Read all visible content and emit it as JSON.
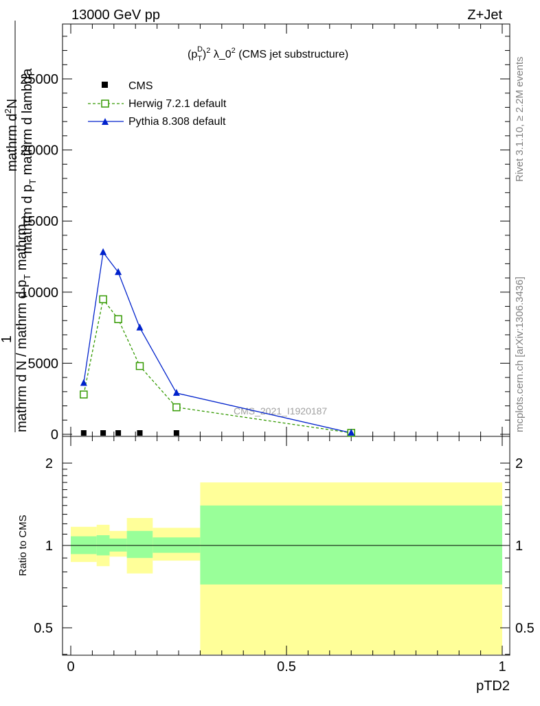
{
  "header": {
    "energy_label": "13000 GeV pp",
    "process_label": "Z+Jet",
    "plot_title_prefix": "(p",
    "plot_title_sub": "T",
    "plot_title_sup": "D",
    "plot_title_rest": ")",
    "plot_title_sup2": "2",
    "plot_title_mid": " λ_0",
    "plot_title_sup3": "2",
    "plot_title_tail": " (CMS jet substructure)"
  },
  "side_labels": {
    "rivet": "Rivet 3.1.10, ≥ 2.2M events",
    "mcplots": "mcplots.cern.ch [arXiv:1306.3436]"
  },
  "watermark": "CMS_2021_I1920187",
  "main_ylabel": {
    "num_1": "1",
    "line_a": "mathrm d N / mathrm d p",
    "line_a_sub": "T",
    "line_a_tail": " mathrm",
    "line_b": "mathrm d",
    "line_b_sup": "2",
    "line_b_tail": "N",
    "line_c": "mathrm d p",
    "line_c_sub": "T",
    "line_c_tail": " mathrm d lambda"
  },
  "ratio_ylabel": "Ratio to CMS",
  "xlabel": "pTD2",
  "colors": {
    "herwig": "#339900",
    "pythia": "#0022cc",
    "cms": "#000000",
    "band_yellow": "#ffff99",
    "band_green": "#99ff99"
  },
  "chart_data": [
    {
      "type": "line",
      "name": "main",
      "xlim": [
        0,
        1
      ],
      "ylim": [
        0,
        29000
      ],
      "yticks": [
        0,
        5000,
        10000,
        15000,
        20000,
        25000
      ],
      "ytick_labels": [
        "0",
        "5000",
        "10000",
        "15000",
        "20000",
        "25000"
      ],
      "legend_position": "top-left",
      "series": [
        {
          "name": "CMS",
          "marker": "square-filled",
          "x": [
            0.03,
            0.075,
            0.11,
            0.16,
            0.245
          ],
          "y": [
            0,
            0,
            0,
            0,
            0
          ]
        },
        {
          "name": "Herwig 7.2.1 default",
          "marker": "square-open",
          "style": "dashed",
          "x": [
            0.03,
            0.075,
            0.11,
            0.16,
            0.245,
            0.65
          ],
          "y": [
            2800,
            9500,
            8100,
            4800,
            1900,
            100
          ]
        },
        {
          "name": "Pythia 8.308 default",
          "marker": "triangle-filled",
          "style": "solid",
          "x": [
            0.03,
            0.075,
            0.11,
            0.16,
            0.245,
            0.65
          ],
          "y": [
            3600,
            12800,
            11400,
            7500,
            2900,
            100
          ]
        }
      ]
    },
    {
      "type": "area",
      "name": "ratio",
      "xlim": [
        0,
        1
      ],
      "ylim": [
        0.35,
        2.3
      ],
      "log_scale": true,
      "yticks": [
        0.5,
        1,
        2
      ],
      "ytick_labels": [
        "0.5",
        "1",
        "2"
      ],
      "xticks": [
        0,
        0.5,
        1
      ],
      "xtick_labels": [
        "0",
        "0.5",
        "1"
      ],
      "reference_line": 1,
      "bands": [
        {
          "x0": 0.0,
          "x1": 0.06,
          "yellow": [
            0.87,
            1.17
          ],
          "green": [
            0.93,
            1.08
          ]
        },
        {
          "x0": 0.06,
          "x1": 0.09,
          "yellow": [
            0.84,
            1.19
          ],
          "green": [
            0.92,
            1.09
          ]
        },
        {
          "x0": 0.09,
          "x1": 0.13,
          "yellow": [
            0.91,
            1.13
          ],
          "green": [
            0.95,
            1.06
          ]
        },
        {
          "x0": 0.13,
          "x1": 0.19,
          "yellow": [
            0.79,
            1.26
          ],
          "green": [
            0.9,
            1.13
          ]
        },
        {
          "x0": 0.19,
          "x1": 0.3,
          "yellow": [
            0.88,
            1.16
          ],
          "green": [
            0.94,
            1.07
          ]
        },
        {
          "x0": 0.3,
          "x1": 1.0,
          "yellow": [
            0.35,
            1.7
          ],
          "green": [
            0.72,
            1.4
          ]
        }
      ]
    }
  ]
}
